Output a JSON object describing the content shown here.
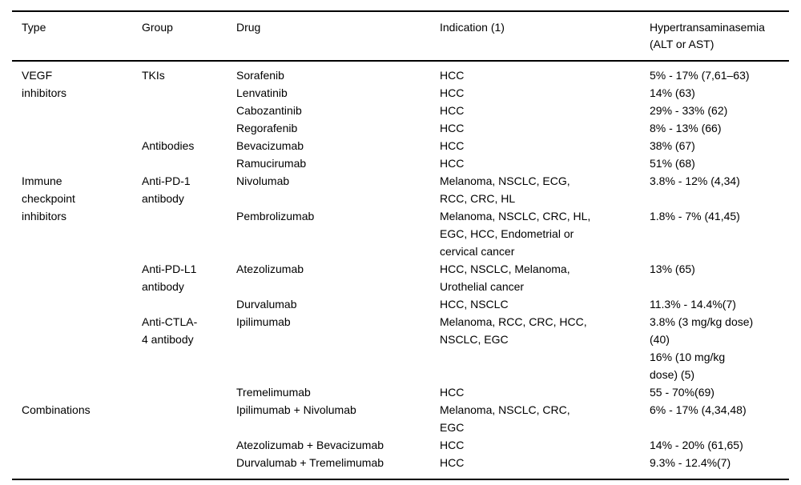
{
  "table": {
    "title_semantic": "Drug hypertransaminasemia table",
    "columns": [
      {
        "label": "Type"
      },
      {
        "label": "Group"
      },
      {
        "label": "Drug"
      },
      {
        "label": "Indication (1)"
      },
      {
        "label": "Hypertransaminasemia\n(ALT or AST)"
      }
    ],
    "rows": [
      {
        "type": "VEGF\ninhibitors",
        "type_rowspan": 6,
        "group": "TKIs",
        "group_rowspan": 4,
        "drug": "Sorafenib",
        "indication": "HCC",
        "value": "5% - 17% (7,61–63)"
      },
      {
        "drug": "Lenvatinib",
        "indication": "HCC",
        "value": "14% (63)"
      },
      {
        "drug": "Cabozantinib",
        "indication": "HCC",
        "value": "29% - 33% (62)"
      },
      {
        "drug": "Regorafenib",
        "indication": "HCC",
        "value": "8% - 13% (66)"
      },
      {
        "group": "Antibodies",
        "group_rowspan": 2,
        "drug": "Bevacizumab",
        "indication": "HCC",
        "value": "38% (67)"
      },
      {
        "drug": "Ramucirumab",
        "indication": "HCC",
        "value": "51% (68)"
      },
      {
        "type": "Immune\ncheckpoint\ninhibitors",
        "type_rowspan": 6,
        "group": "Anti-PD-1\nantibody",
        "group_rowspan": 2,
        "drug": "Nivolumab",
        "indication": "Melanoma, NSCLC, ECG,\nRCC, CRC, HL",
        "value": "3.8% - 12% (4,34)"
      },
      {
        "drug": "Pembrolizumab",
        "indication": "Melanoma, NSCLC, CRC, HL,\nEGC, HCC, Endometrial or\ncervical cancer",
        "value": "1.8% - 7% (41,45)"
      },
      {
        "group": "Anti-PD-L1\nantibody",
        "group_rowspan": 2,
        "drug": "Atezolizumab",
        "indication": "HCC, NSCLC, Melanoma,\nUrothelial cancer",
        "value": "13% (65)"
      },
      {
        "drug": "Durvalumab",
        "indication": "HCC, NSCLC",
        "value": "11.3% - 14.4%(7)"
      },
      {
        "group": "Anti-CTLA-\n4 antibody",
        "group_rowspan": 2,
        "drug": "Ipilimumab",
        "indication": "Melanoma, RCC, CRC, HCC,\nNSCLC, EGC",
        "value": "3.8% (3 mg/kg dose)\n(40)\n16% (10 mg/kg\ndose) (5)"
      },
      {
        "drug": "Tremelimumab",
        "indication": "HCC",
        "value": "55 - 70%(69)"
      },
      {
        "type": "Combinations",
        "type_rowspan": 3,
        "group": "",
        "group_rowspan": 3,
        "drug": "Ipilimumab + Nivolumab",
        "indication": "Melanoma, NSCLC, CRC,\nEGC",
        "value": "6% - 17% (4,34,48)"
      },
      {
        "drug": "Atezolizumab + Bevacizumab",
        "indication": "HCC",
        "value": "14% - 20% (61,65)"
      },
      {
        "drug": "Durvalumab + Tremelimumab",
        "indication": "HCC",
        "value": "9.3% - 12.4%(7)"
      }
    ]
  }
}
